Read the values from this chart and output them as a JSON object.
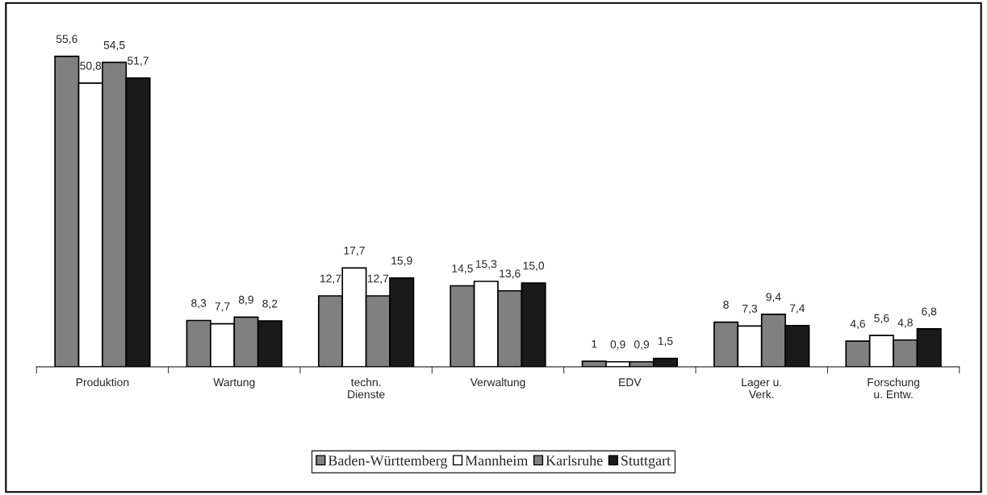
{
  "chart_data": {
    "type": "bar",
    "categories": [
      "Produktion",
      "Wartung",
      "techn.\nDienste",
      "Verwaltung",
      "EDV",
      "Lager u.\nVerk.",
      "Forschung\nu. Entw."
    ],
    "series": [
      {
        "name": "Baden-Württemberg",
        "color": "#808080",
        "values": [
          55.6,
          8.3,
          12.7,
          14.5,
          1,
          8,
          4.6
        ],
        "value_labels": [
          "55,6",
          "8,3",
          "12,7",
          "14,5",
          "1",
          "8",
          "4,6"
        ]
      },
      {
        "name": "Mannheim",
        "color": "#ffffff",
        "values": [
          50.8,
          7.7,
          17.7,
          15.3,
          0.9,
          7.3,
          5.6
        ],
        "value_labels": [
          "50,8",
          "7,7",
          "17,7",
          "15,3",
          "0,9",
          "7,3",
          "5,6"
        ]
      },
      {
        "name": "Karlsruhe",
        "color": "#808080",
        "values": [
          54.5,
          8.9,
          12.7,
          13.6,
          0.9,
          9.4,
          4.8
        ],
        "value_labels": [
          "54,5",
          "8,9",
          "12,7",
          "13,6",
          "0,9",
          "9,4",
          "4,8"
        ]
      },
      {
        "name": "Stuttgart",
        "color": "#1a1a1a",
        "values": [
          51.7,
          8.2,
          15.9,
          15.0,
          1.5,
          7.4,
          6.8
        ],
        "value_labels": [
          "51,7",
          "8,2",
          "15,9",
          "15,0",
          "1,5",
          "7,4",
          "6,8"
        ]
      }
    ],
    "legend": "bottom",
    "grid": false
  }
}
